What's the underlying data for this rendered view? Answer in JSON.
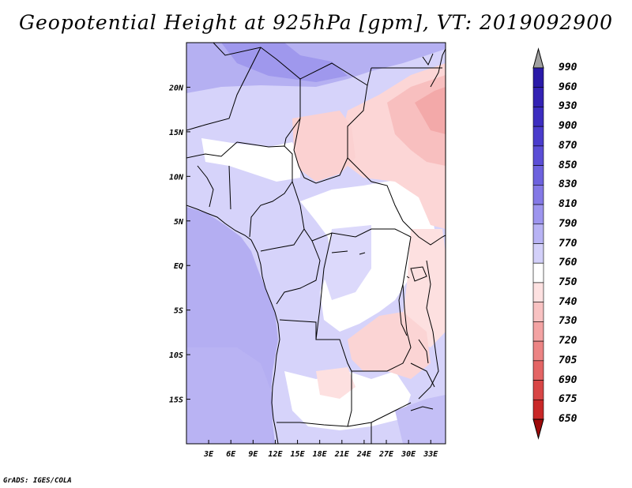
{
  "title": "Geopotential Height at 925hPa [gpm], VT: 2019092900",
  "credit": "GrADS: IGES/COLA",
  "map": {
    "lon_range": [
      0,
      35
    ],
    "lat_range": [
      -20,
      25
    ],
    "lon_ticks": [
      "3E",
      "6E",
      "9E",
      "12E",
      "15E",
      "18E",
      "21E",
      "24E",
      "27E",
      "30E",
      "33E"
    ],
    "lat_ticks": [
      "20N",
      "15N",
      "10N",
      "5N",
      "EQ",
      "5S",
      "10S",
      "15S"
    ]
  },
  "colorbar": {
    "labels": [
      "990",
      "960",
      "930",
      "900",
      "870",
      "850",
      "830",
      "810",
      "790",
      "770",
      "760",
      "750",
      "740",
      "730",
      "720",
      "705",
      "690",
      "675",
      "650"
    ],
    "colors": [
      "#2a1aa8",
      "#3322b4",
      "#3c2dc0",
      "#4a3ccc",
      "#5b4ed6",
      "#6d62de",
      "#8479e6",
      "#9d95ee",
      "#b8b3f4",
      "#d3d0f9",
      "#ffffff",
      "#fde1e1",
      "#f8c2c2",
      "#f3a3a3",
      "#ec8484",
      "#e46565",
      "#d84646",
      "#c92828",
      "#b50c0c"
    ],
    "top_arrow_color": "#a0a0a0",
    "bottom_arrow_color": "#9e0a0a"
  }
}
